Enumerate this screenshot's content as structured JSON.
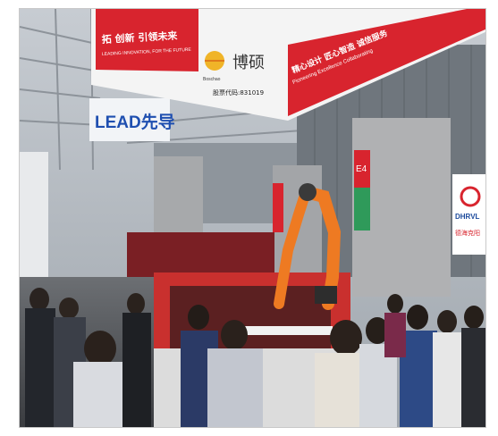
{
  "photo": {
    "scene": "trade-show",
    "banner": {
      "slogan_cn": "拓 创新 引领未来",
      "slogan_en": "LEADING INNOVATION, FOR THE FUTURE",
      "brand_cn": "博硕",
      "brand_logo_text": "Boschao",
      "stock_code": "股票代码:831019",
      "right_cn": "精心设计 匠心智造 诚信服务",
      "right_en": "Pioneering Excellence Collaborating"
    },
    "signs": {
      "leadao": "LEAD先导",
      "booth_code": "E4",
      "dhrvl": "DHRVL",
      "dhrvl_cn": "德海克阳"
    },
    "colors": {
      "banner_red": "#d8242e",
      "robot_orange": "#ee7a22",
      "ceiling": "#b7bcc2"
    }
  }
}
